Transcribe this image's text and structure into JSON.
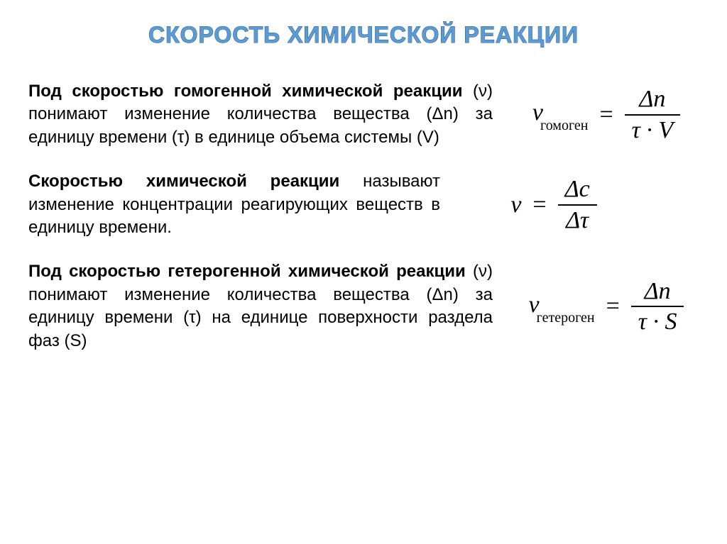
{
  "title": {
    "text": "СКОРОСТЬ ХИМИЧЕСКОЙ РЕАКЦИИ",
    "fill_color": "#5b9bd5",
    "stroke_color": "#2e5d8a"
  },
  "sections": [
    {
      "bold_prefix": "Под скоростью гомогенной химической реакции",
      "rest": " (ν) понимают изменение количества вещества (Δn) за единицу времени (τ) в единице объема системы (V)",
      "formula": {
        "lhs_var": "ν",
        "lhs_sub": "гомоген",
        "numerator": "Δn",
        "denominator": "τ · V"
      }
    },
    {
      "bold_prefix": "Скоростью химической реакции",
      "rest": " называют изменение концентрации реагирующих веществ в единицу времени.",
      "formula": {
        "lhs_var": "ν",
        "lhs_sub": "",
        "numerator": "Δc",
        "denominator": "Δτ"
      }
    },
    {
      "bold_prefix": "Под скоростью гетерогенной химической реакции",
      "rest": " (ν) понимают изменение количества вещества (Δn) за единицу времени (τ) на единице поверхности раздела фаз (S)",
      "formula": {
        "lhs_var": "ν",
        "lhs_sub": "гетероген",
        "numerator": "Δn",
        "denominator": "τ · S"
      }
    }
  ]
}
